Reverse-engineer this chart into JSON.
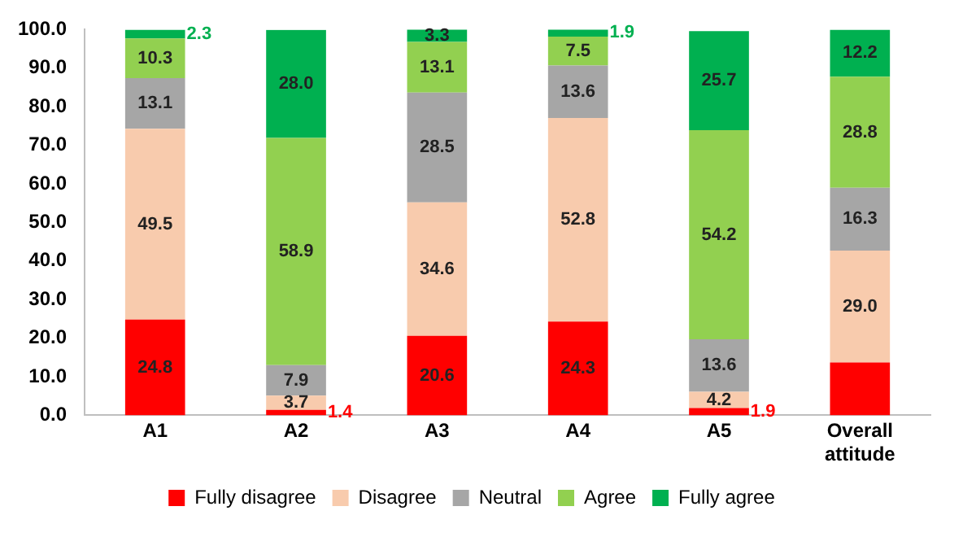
{
  "chart_data": {
    "type": "bar",
    "stacked": true,
    "categories": [
      "A1",
      "A2",
      "A3",
      "A4",
      "A5",
      "Overall attitude"
    ],
    "series": [
      {
        "name": "Fully disagree",
        "color": "#ff0000",
        "values": [
          24.8,
          1.4,
          20.6,
          24.3,
          1.9,
          13.7
        ],
        "value_labels": [
          "24.8",
          "1.4",
          "20.6",
          "24.3",
          "1.9",
          null
        ]
      },
      {
        "name": "Disagree",
        "color": "#f8cbad",
        "values": [
          49.5,
          3.7,
          34.6,
          52.8,
          4.2,
          29.0
        ],
        "value_labels": [
          "49.5",
          "3.7",
          "34.6",
          "52.8",
          "4.2",
          "29.0"
        ]
      },
      {
        "name": "Neutral",
        "color": "#a6a6a6",
        "values": [
          13.1,
          7.9,
          28.5,
          13.6,
          13.6,
          16.3
        ],
        "value_labels": [
          "13.1",
          "7.9",
          "28.5",
          "13.6",
          "13.6",
          "16.3"
        ]
      },
      {
        "name": "Agree",
        "color": "#92d050",
        "values": [
          10.3,
          58.9,
          13.1,
          7.5,
          54.2,
          28.8
        ],
        "value_labels": [
          "10.3",
          "58.9",
          "13.1",
          "7.5",
          "54.2",
          "28.8"
        ]
      },
      {
        "name": "Fully agree",
        "color": "#00b050",
        "values": [
          2.3,
          28.0,
          3.3,
          1.9,
          25.7,
          12.2
        ],
        "value_labels": [
          "2.3",
          "28.0",
          "3.3",
          "1.9",
          "25.7",
          "12.2"
        ]
      }
    ],
    "ylim": [
      0,
      100
    ],
    "yticks": [
      {
        "value": 0,
        "label": "0.0"
      },
      {
        "value": 10,
        "label": "10.0"
      },
      {
        "value": 20,
        "label": "20.0"
      },
      {
        "value": 30,
        "label": "30.0"
      },
      {
        "value": 40,
        "label": "40.0"
      },
      {
        "value": 50,
        "label": "50.0"
      },
      {
        "value": 60,
        "label": "60.0"
      },
      {
        "value": 70,
        "label": "70.0"
      },
      {
        "value": 80,
        "label": "80.0"
      },
      {
        "value": 90,
        "label": "90.0"
      },
      {
        "value": 100,
        "label": "100.0"
      }
    ],
    "grid": false,
    "legend": "bottom"
  }
}
